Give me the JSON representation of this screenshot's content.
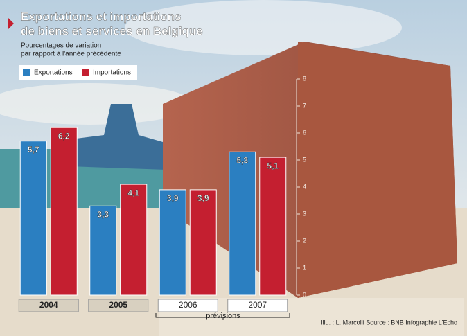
{
  "chart_data": {
    "type": "bar",
    "title": [
      "Exportations et importations",
      "de biens et services en Belgique"
    ],
    "subtitle": [
      "Pourcentages de variation",
      "par rapport à l'année précédente"
    ],
    "categories": [
      "2004",
      "2005",
      "2006",
      "2007"
    ],
    "category_box_colors": [
      "#d8d0c0",
      "#d8d0c0",
      "#ffffff",
      "#ffffff"
    ],
    "series": [
      {
        "name": "Exportations",
        "color": "#2b7fc1",
        "values": [
          5.7,
          3.3,
          3.9,
          5.3
        ],
        "value_labels": [
          "5,7",
          "3,3",
          "3,9",
          "5,3"
        ]
      },
      {
        "name": "Importations",
        "color": "#c41f30",
        "values": [
          6.2,
          4.1,
          3.9,
          5.1
        ],
        "value_labels": [
          "6,2",
          "4,1",
          "3,9",
          "5,1"
        ]
      }
    ],
    "ylim": [
      0,
      8
    ],
    "yticks": [
      0,
      1,
      2,
      3,
      4,
      5,
      6,
      7,
      8
    ],
    "annotation": "prévisions",
    "source": "Illu. : L. Marcolli   Source : BNB   Infographie L'Echo"
  }
}
